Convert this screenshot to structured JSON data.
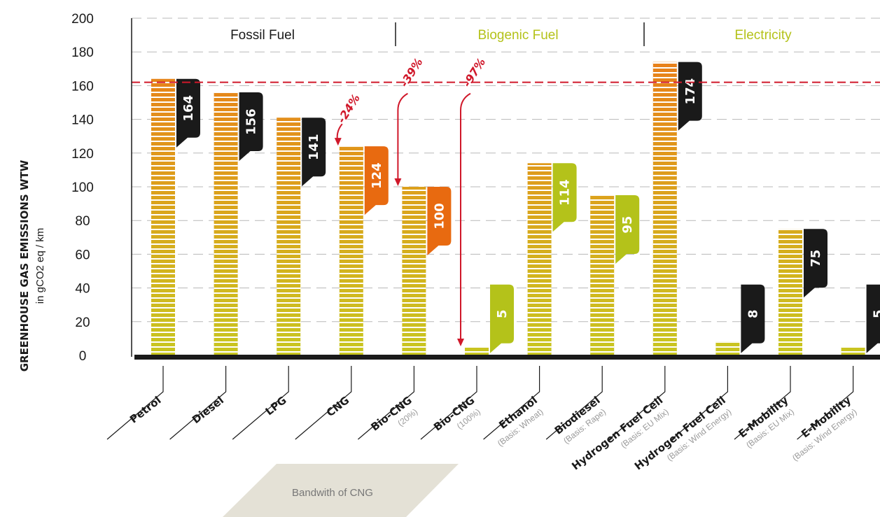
{
  "chart_data": {
    "type": "bar",
    "ylabel": "GREENHOUSE GAS EMISSIONS WTW",
    "ylabel_unit": "in gCO2 eq / km",
    "ylim": [
      0,
      200
    ],
    "yticks": [
      0,
      20,
      40,
      60,
      80,
      100,
      120,
      140,
      160,
      180,
      200
    ],
    "reference_line": 162,
    "sections": [
      {
        "label": "Fossil Fuel",
        "color": "#1a1a1a"
      },
      {
        "label": "Biogenic Fuel",
        "color": "#b4c21a"
      },
      {
        "label": "Electricity",
        "color": "#b4c21a"
      }
    ],
    "categories": [
      {
        "name": "Petrol",
        "basis": "",
        "value": 164,
        "label_color": "#1a1a1a"
      },
      {
        "name": "Diesel",
        "basis": "",
        "value": 156,
        "label_color": "#1a1a1a"
      },
      {
        "name": "LPG",
        "basis": "",
        "value": 141,
        "label_color": "#1a1a1a"
      },
      {
        "name": "CNG",
        "basis": "",
        "value": 124,
        "label_color": "#e86a10",
        "reduction": "-24%"
      },
      {
        "name": "Bio-CNG",
        "basis": "(20%)",
        "value": 100,
        "label_color": "#e86a10",
        "reduction": "-39%"
      },
      {
        "name": "Bio-CNG",
        "basis": "(100%)",
        "value": 5,
        "label_color": "#b4c21a",
        "reduction": "-97%"
      },
      {
        "name": "Ethanol",
        "basis": "(Basis: Wheat)",
        "value": 114,
        "label_color": "#b4c21a"
      },
      {
        "name": "Biodiesel",
        "basis": "(Basis: Rape)",
        "value": 95,
        "label_color": "#b4c21a"
      },
      {
        "name": "Hydrogen Fuel Cell",
        "basis": "(Basis: EU Mix)",
        "value": 174,
        "label_color": "#1a1a1a"
      },
      {
        "name": "Hydrogen Fuel Cell",
        "basis": "(Basis: Wind Energy)",
        "value": 8,
        "label_color": "#1a1a1a"
      },
      {
        "name": "E-Mobility",
        "basis": "(Basis: EU Mix)",
        "value": 75,
        "label_color": "#1a1a1a"
      },
      {
        "name": "E-Mobility",
        "basis": "(Basis: Wind Energy)",
        "value": 5,
        "label_color": "#1a1a1a"
      }
    ],
    "band_label": "Bandwith of CNG",
    "colors": {
      "bar_top": "#e8801a",
      "bar_bottom": "#c8c620",
      "reference": "#d0182a",
      "axis": "#1a1a1a",
      "grid": "#b8b8b8"
    }
  }
}
